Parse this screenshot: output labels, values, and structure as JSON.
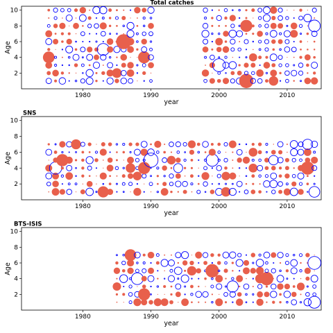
{
  "colors": {
    "positive": "#e8604c",
    "negative": "#0000ff",
    "frame": "#000000"
  },
  "chart_data": [
    {
      "type": "scatter",
      "subtype": "bubble-residuals",
      "title": "Total catches",
      "xlabel": "year",
      "ylabel": "Age",
      "xlim": [
        1971,
        2015
      ],
      "ylim": [
        0,
        10.5
      ],
      "xticks": [
        1980,
        1990,
        2000,
        2010
      ],
      "yticks": [
        2,
        4,
        6,
        8,
        10
      ],
      "ages": [
        1,
        2,
        3,
        4,
        5,
        6,
        7,
        8,
        9,
        10
      ],
      "years": [
        [
          1975,
          1990
        ],
        [
          1998,
          2014
        ]
      ],
      "encoding": "circle area = |residual|; filled = positive, open = negative"
    },
    {
      "type": "scatter",
      "subtype": "bubble-residuals",
      "title": "SNS",
      "xlabel": "year",
      "ylabel": "Age",
      "xlim": [
        1971,
        2015
      ],
      "ylim": [
        0,
        10.5
      ],
      "xticks": [
        1980,
        1990,
        2000,
        2010
      ],
      "yticks": [
        2,
        4,
        6,
        8,
        10
      ],
      "ages": [
        1,
        2,
        3,
        4,
        5,
        6,
        7
      ],
      "years": [
        [
          1975,
          2014
        ]
      ],
      "encoding": "circle area = |residual|; filled = positive, open = negative"
    },
    {
      "type": "scatter",
      "subtype": "bubble-residuals",
      "title": "BTS-ISIS",
      "xlabel": "year",
      "ylabel": "Age",
      "xlim": [
        1971,
        2015
      ],
      "ylim": [
        0,
        10.5
      ],
      "xticks": [
        1980,
        1990,
        2000,
        2010
      ],
      "yticks": [
        2,
        4,
        6,
        8,
        10
      ],
      "ages": [
        1,
        2,
        3,
        4,
        5,
        6,
        7
      ],
      "years": [
        [
          1985,
          2014
        ]
      ],
      "encoding": "circle area = |residual|; filled = positive, open = negative"
    }
  ]
}
